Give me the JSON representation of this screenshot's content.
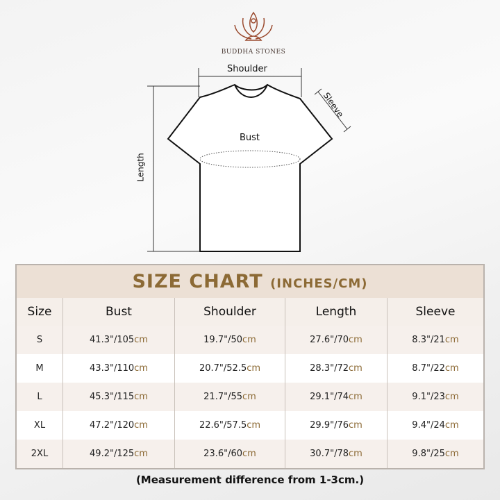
{
  "brand": "BUDDHA STONES",
  "diagram": {
    "shoulder": "Shoulder",
    "sleeve": "Sleeve",
    "bust": "Bust",
    "length": "Length"
  },
  "table": {
    "title": "SIZE CHART",
    "title_units": "(INCHES/CM)",
    "headers": [
      "Size",
      "Bust",
      "Shoulder",
      "Length",
      "Sleeve"
    ],
    "unit": "cm",
    "rows": [
      [
        "S",
        "41.3\"/105",
        "19.7\"/50",
        "27.6\"/70",
        "8.3\"/21"
      ],
      [
        "M",
        "43.3\"/110",
        "20.7\"/52.5",
        "28.3\"/72",
        "8.7\"/22"
      ],
      [
        "L",
        "45.3\"/115",
        "21.7\"/55",
        "29.1\"/74",
        "9.1\"/23"
      ],
      [
        "XL",
        "47.2\"/120",
        "22.6\"/57.5",
        "29.9\"/76",
        "9.4\"/24"
      ],
      [
        "2XL",
        "49.2\"/125",
        "23.6\"/60",
        "30.7\"/78",
        "9.8\"/25"
      ]
    ]
  },
  "note": "(Measurement difference from 1-3cm.)",
  "colors": {
    "accent": "#8c6a35",
    "title_bg": "#ece0d5"
  }
}
